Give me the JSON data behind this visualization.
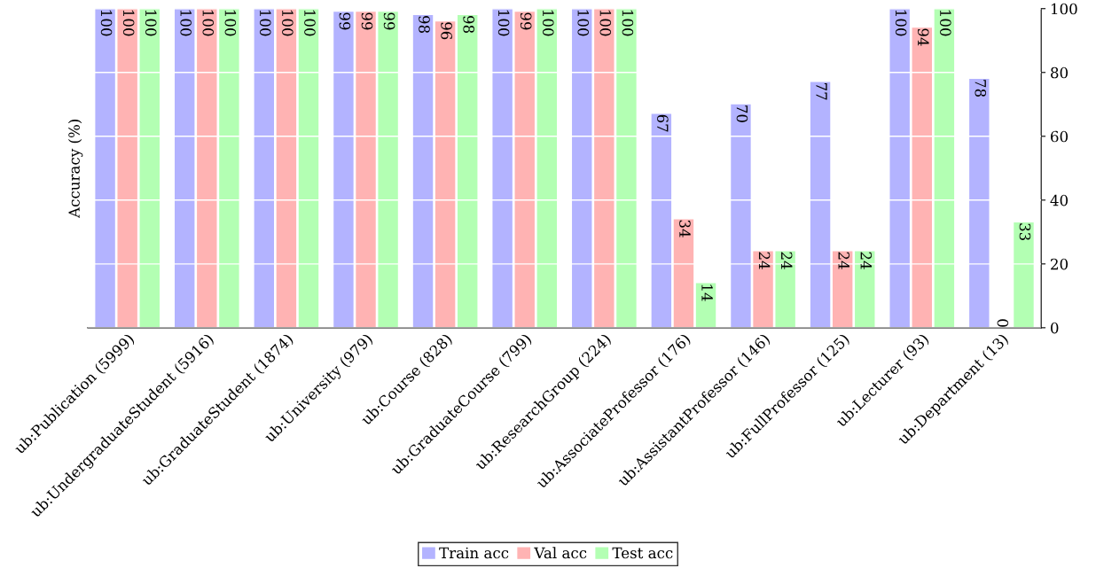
{
  "chart_data": {
    "type": "bar",
    "ylabel": "Accuracy (%)",
    "categories": [
      "ub:Publication (5999)",
      "ub:UndergraduateStudent (5916)",
      "ub:GraduateStudent (1874)",
      "ub:University (979)",
      "ub:Course (828)",
      "ub:GraduateCourse (799)",
      "ub:ResearchGroup (224)",
      "ub:AssociateProfessor (176)",
      "ub:AssistantProfessor (146)",
      "ub:FullProfessor (125)",
      "ub:Lecturer (93)",
      "ub:Department (13)"
    ],
    "series": [
      {
        "name": "Train acc",
        "color": "#b3b3ff",
        "values": [
          100,
          100,
          100,
          99,
          98,
          100,
          100,
          67,
          70,
          77,
          100,
          78
        ]
      },
      {
        "name": "Val acc",
        "color": "#ffb3b3",
        "values": [
          100,
          100,
          100,
          99,
          96,
          99,
          100,
          34,
          24,
          24,
          94,
          0
        ]
      },
      {
        "name": "Test acc",
        "color": "#b3ffb3",
        "values": [
          100,
          100,
          100,
          99,
          98,
          100,
          100,
          14,
          24,
          24,
          100,
          33
        ]
      }
    ],
    "ylim": [
      0,
      100
    ],
    "yticks": [
      0,
      20,
      40,
      60,
      80,
      100
    ],
    "grid": "y",
    "legend": "bottom",
    "data_labels": true
  }
}
